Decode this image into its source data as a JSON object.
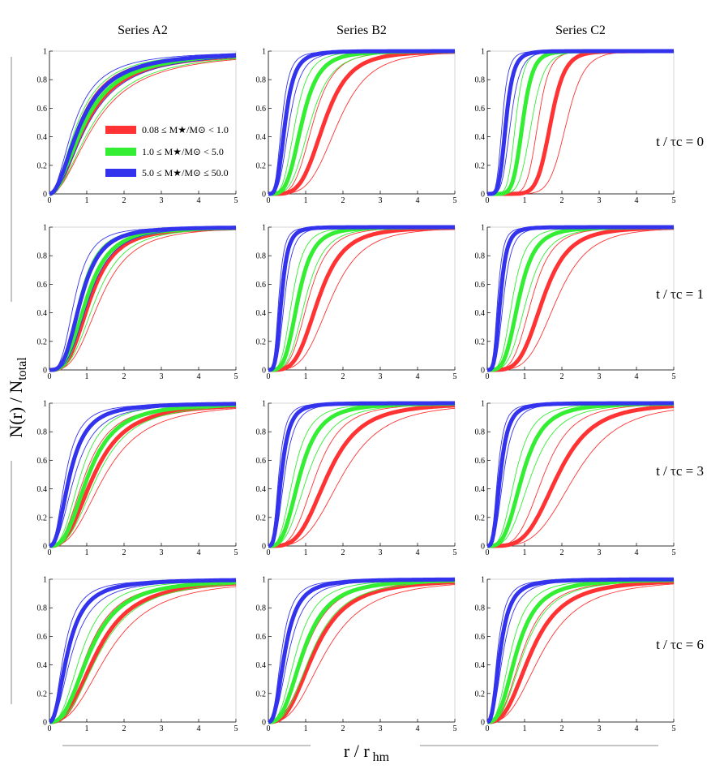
{
  "chart_data": {
    "type": "line",
    "title": "",
    "xlabel": "r / r_hm",
    "ylabel": "N(r) / N_total",
    "xlim": [
      0,
      5
    ],
    "ylim": [
      0,
      1
    ],
    "x_ticks": [
      "0",
      "1",
      "2",
      "3",
      "4",
      "5"
    ],
    "y_ticks": [
      "0",
      "0.2",
      "0.4",
      "0.6",
      "0.8",
      "1"
    ],
    "columns": [
      "Series A2",
      "Series B2",
      "Series C2"
    ],
    "rows": [
      "t / τc = 0",
      "t / τc = 1",
      "t / τc = 3",
      "t / τc = 6"
    ],
    "legend": {
      "placement": "inside-top-panel-left",
      "entries": [
        {
          "label": "0.08 ≤ M★/M⊙ < 1.0",
          "color": "#ff3333"
        },
        {
          "label": "1.0 ≤ M★/M⊙ < 5.0",
          "color": "#33ee33"
        },
        {
          "label": "5.0 ≤ M★/M⊙ ≤ 50.0",
          "color": "#3333ee"
        }
      ]
    },
    "panels": [
      {
        "column": "Series A2",
        "row": "t / τc = 0",
        "series": [
          {
            "color": "#ff3333",
            "half_radius": 1.0,
            "steep": 1.0
          },
          {
            "color": "#33ee33",
            "half_radius": 0.95,
            "steep": 1.0
          },
          {
            "color": "#3333ee",
            "half_radius": 0.85,
            "steep": 1.0
          }
        ]
      },
      {
        "column": "Series B2",
        "row": "t / τc = 0",
        "series": [
          {
            "color": "#ff3333",
            "half_radius": 1.5,
            "steep": 2.2
          },
          {
            "color": "#33ee33",
            "half_radius": 0.9,
            "steep": 2.0
          },
          {
            "color": "#3333ee",
            "half_radius": 0.45,
            "steep": 1.8
          }
        ]
      },
      {
        "column": "Series C2",
        "row": "t / τc = 0",
        "series": [
          {
            "color": "#ff3333",
            "half_radius": 1.7,
            "steep": 4.5
          },
          {
            "color": "#33ee33",
            "half_radius": 0.95,
            "steep": 3.5
          },
          {
            "color": "#3333ee",
            "half_radius": 0.5,
            "steep": 2.5
          }
        ]
      },
      {
        "column": "Series A2",
        "row": "t / τc = 1",
        "series": [
          {
            "color": "#ff3333",
            "half_radius": 1.1,
            "steep": 1.6
          },
          {
            "color": "#33ee33",
            "half_radius": 1.0,
            "steep": 1.6
          },
          {
            "color": "#3333ee",
            "half_radius": 0.85,
            "steep": 1.6
          }
        ]
      },
      {
        "column": "Series B2",
        "row": "t / τc = 1",
        "series": [
          {
            "color": "#ff3333",
            "half_radius": 1.35,
            "steep": 2.0
          },
          {
            "color": "#33ee33",
            "half_radius": 0.8,
            "steep": 2.0
          },
          {
            "color": "#3333ee",
            "half_radius": 0.35,
            "steep": 2.0
          }
        ]
      },
      {
        "column": "Series C2",
        "row": "t / τc = 1",
        "series": [
          {
            "color": "#ff3333",
            "half_radius": 1.5,
            "steep": 2.2
          },
          {
            "color": "#33ee33",
            "half_radius": 0.85,
            "steep": 2.0
          },
          {
            "color": "#3333ee",
            "half_radius": 0.35,
            "steep": 2.0
          }
        ]
      },
      {
        "column": "Series A2",
        "row": "t / τc = 3",
        "series": [
          {
            "color": "#ff3333",
            "half_radius": 1.2,
            "steep": 1.35
          },
          {
            "color": "#33ee33",
            "half_radius": 1.05,
            "steep": 1.4
          },
          {
            "color": "#3333ee",
            "half_radius": 0.55,
            "steep": 1.2
          }
        ]
      },
      {
        "column": "Series B2",
        "row": "t / τc = 3",
        "series": [
          {
            "color": "#ff3333",
            "half_radius": 1.6,
            "steep": 1.8
          },
          {
            "color": "#33ee33",
            "half_radius": 0.85,
            "steep": 1.6
          },
          {
            "color": "#3333ee",
            "half_radius": 0.35,
            "steep": 1.6
          }
        ]
      },
      {
        "column": "Series C2",
        "row": "t / τc = 3",
        "series": [
          {
            "color": "#ff3333",
            "half_radius": 1.9,
            "steep": 2.0
          },
          {
            "color": "#33ee33",
            "half_radius": 0.95,
            "steep": 1.7
          },
          {
            "color": "#3333ee",
            "half_radius": 0.35,
            "steep": 1.6
          }
        ]
      },
      {
        "column": "Series A2",
        "row": "t / τc = 6",
        "series": [
          {
            "color": "#ff3333",
            "half_radius": 1.3,
            "steep": 1.3
          },
          {
            "color": "#33ee33",
            "half_radius": 1.1,
            "steep": 1.3
          },
          {
            "color": "#3333ee",
            "half_radius": 0.5,
            "steep": 1.1
          }
        ]
      },
      {
        "column": "Series B2",
        "row": "t / τc = 6",
        "series": [
          {
            "color": "#ff3333",
            "half_radius": 1.25,
            "steep": 1.4
          },
          {
            "color": "#33ee33",
            "half_radius": 0.95,
            "steep": 1.4
          },
          {
            "color": "#3333ee",
            "half_radius": 0.45,
            "steep": 1.3
          }
        ]
      },
      {
        "column": "Series C2",
        "row": "t / τc = 6",
        "series": [
          {
            "color": "#ff3333",
            "half_radius": 1.2,
            "steep": 1.4
          },
          {
            "color": "#33ee33",
            "half_radius": 0.8,
            "steep": 1.4
          },
          {
            "color": "#3333ee",
            "half_radius": 0.35,
            "steep": 1.3
          }
        ]
      }
    ]
  }
}
